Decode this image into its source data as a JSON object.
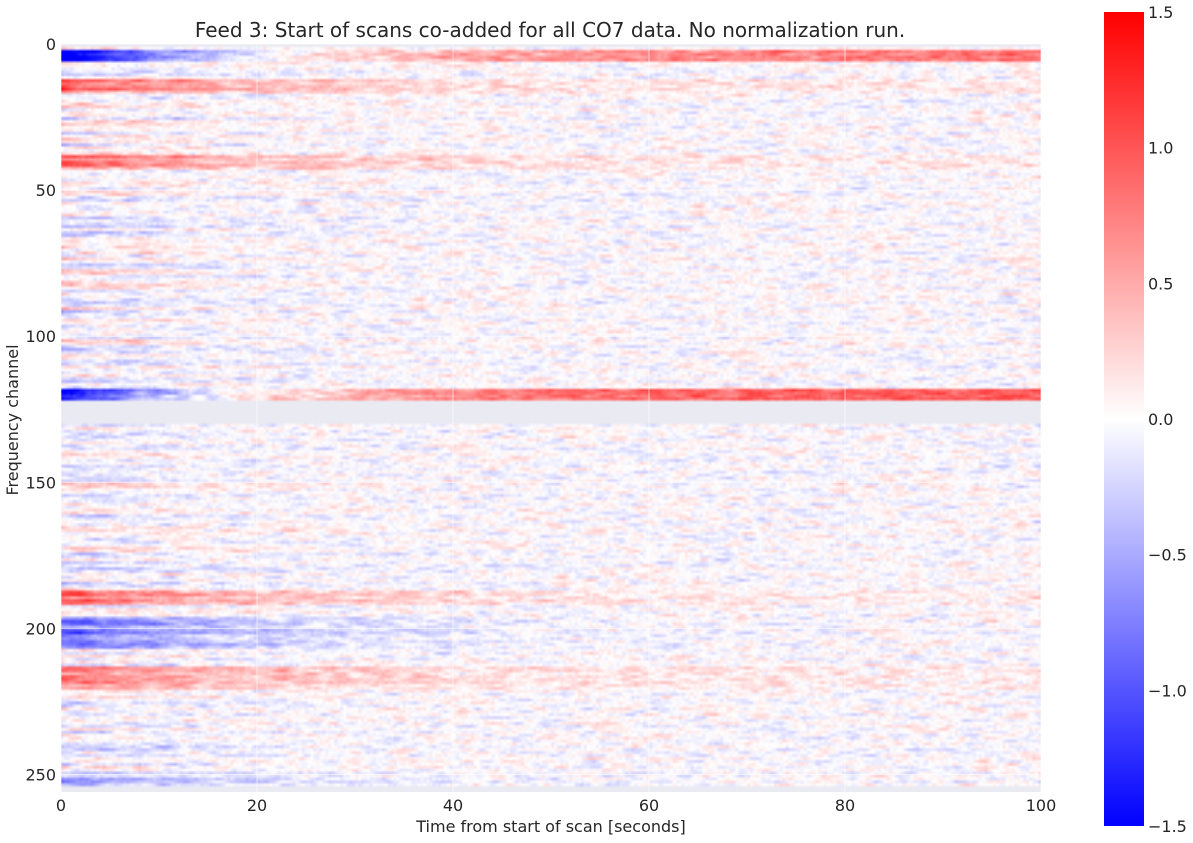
{
  "chart_data": {
    "type": "heatmap",
    "title": "Feed 3: Start of scans co-added for all CO7 data. No normalization run.",
    "xlabel": "Time from start of scan [seconds]",
    "ylabel": "Frequency channel",
    "xlim": [
      0,
      100
    ],
    "ylim": [
      256,
      0
    ],
    "x_ticks": [
      "0",
      "20",
      "40",
      "60",
      "80",
      "100"
    ],
    "y_ticks": [
      "0",
      "50",
      "100",
      "150",
      "200",
      "250"
    ],
    "x_tick_values": [
      0,
      20,
      40,
      60,
      80,
      100
    ],
    "y_tick_values": [
      0,
      50,
      100,
      150,
      200,
      250
    ],
    "grid": true,
    "colormap": "bwr",
    "colorbar": {
      "vmin": -1.5,
      "vmax": 1.5,
      "ticks": [
        "1.5",
        "1.0",
        "0.5",
        "0.0",
        "−0.5",
        "−1.0",
        "−1.5"
      ],
      "tick_values": [
        1.5,
        1.0,
        0.5,
        0.0,
        -0.5,
        -1.0,
        -1.5
      ]
    },
    "masked_channels": [
      [
        0,
        1
      ],
      [
        122,
        130
      ],
      [
        254,
        256
      ]
    ],
    "channel_bands": [
      {
        "channels": [
          2,
          5
        ],
        "value_at_start": -1.5,
        "value_at_end": 0.8
      },
      {
        "channels": [
          12,
          16
        ],
        "value_at_start": 0.9,
        "value_at_end": 0.1
      },
      {
        "channels": [
          38,
          42
        ],
        "value_at_start": 0.8,
        "value_at_end": 0.1
      },
      {
        "channels": [
          118,
          121
        ],
        "value_at_start": -1.5,
        "value_at_end": 1.0
      },
      {
        "channels": [
          187,
          191
        ],
        "value_at_start": 0.8,
        "value_at_end": 0.1
      },
      {
        "channels": [
          196,
          206
        ],
        "value_at_start": -0.8,
        "value_at_end": 0.0
      },
      {
        "channels": [
          213,
          220
        ],
        "value_at_start": 0.7,
        "value_at_end": 0.1
      },
      {
        "channels": [
          249,
          253
        ],
        "value_at_start": -0.6,
        "value_at_end": 0.0
      }
    ],
    "colors": {
      "axes_bg": "#eaeaf2",
      "grid": "#ffffff",
      "text": "#262626"
    }
  }
}
